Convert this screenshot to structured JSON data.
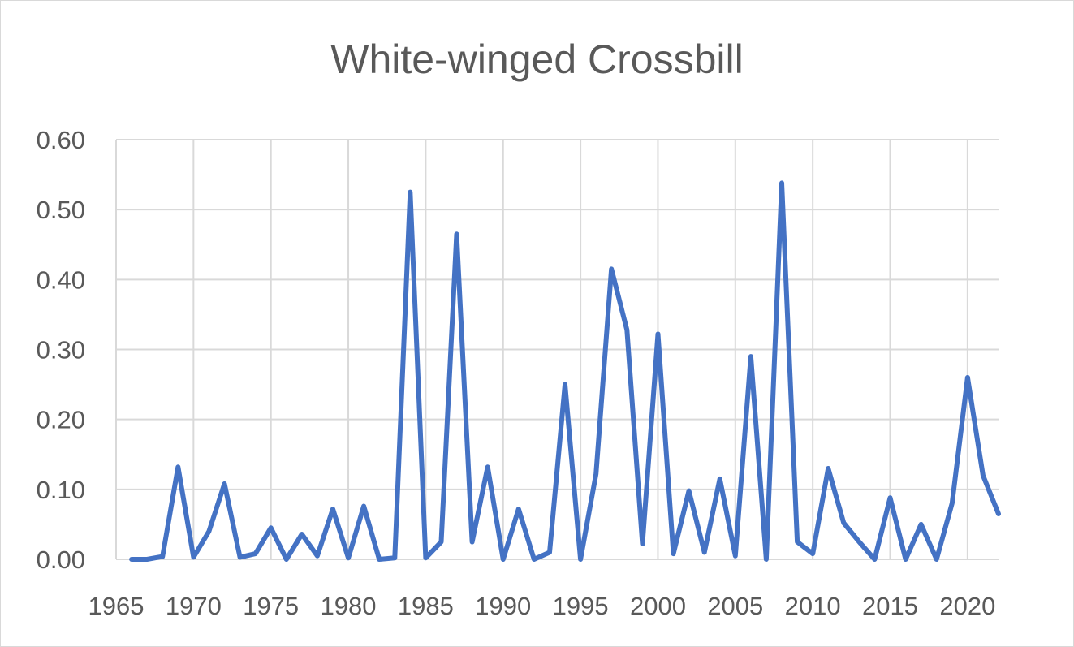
{
  "chart_data": {
    "type": "line",
    "title": "White-winged Crossbill",
    "xlabel": "",
    "ylabel": "",
    "xlim": [
      1965,
      2022
    ],
    "ylim": [
      0,
      0.6
    ],
    "x_ticks": [
      "1965",
      "1970",
      "1975",
      "1980",
      "1985",
      "1990",
      "1995",
      "2000",
      "2005",
      "2010",
      "2015",
      "2020"
    ],
    "y_ticks": [
      "0.00",
      "0.10",
      "0.20",
      "0.30",
      "0.40",
      "0.50",
      "0.60"
    ],
    "grid": true,
    "legend": "none",
    "series_color": "#4472c4",
    "series": [
      {
        "x": [
          1966,
          1967,
          1968,
          1969,
          1970,
          1971,
          1972,
          1973,
          1974,
          1975,
          1976,
          1977,
          1978,
          1979,
          1980,
          1981,
          1982,
          1983,
          1984,
          1985,
          1986,
          1987,
          1988,
          1989,
          1990,
          1991,
          1992,
          1993,
          1994,
          1995,
          1996,
          1997,
          1998,
          1999,
          2000,
          2001,
          2002,
          2003,
          2004,
          2005,
          2006,
          2007,
          2008,
          2009,
          2010,
          2011,
          2012,
          2013,
          2014,
          2015,
          2016,
          2017,
          2018,
          2019,
          2020,
          2021,
          2022
        ],
        "values": [
          0.0,
          0.0,
          0.004,
          0.132,
          0.003,
          0.04,
          0.108,
          0.003,
          0.008,
          0.045,
          0.0,
          0.036,
          0.005,
          0.072,
          0.002,
          0.076,
          0.0,
          0.002,
          0.525,
          0.002,
          0.025,
          0.465,
          0.025,
          0.132,
          0.0,
          0.072,
          0.0,
          0.01,
          0.25,
          0.0,
          0.122,
          0.415,
          0.328,
          0.022,
          0.322,
          0.008,
          0.098,
          0.01,
          0.115,
          0.005,
          0.29,
          0.0,
          0.538,
          0.025,
          0.008,
          0.13,
          0.052,
          0.025,
          0.0,
          0.088,
          0.0,
          0.05,
          0.0,
          0.08,
          0.26,
          0.12,
          0.065
        ]
      }
    ]
  }
}
